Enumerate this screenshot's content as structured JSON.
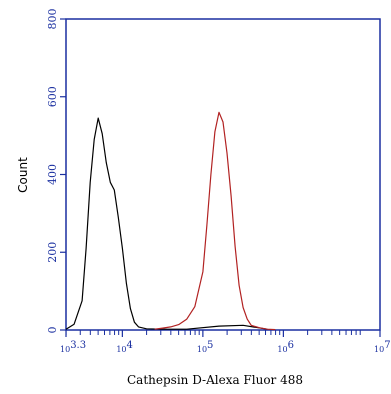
{
  "chart_data": {
    "type": "line",
    "xlabel": "Cathepsin D-Alexa Fluor 488",
    "ylabel": "Count",
    "x_scale": "log10",
    "xlim": [
      3.3,
      7.2
    ],
    "ylim": [
      0,
      800
    ],
    "y_ticks": [
      "0",
      "200",
      "400",
      "600",
      "800"
    ],
    "x_ticks": [
      {
        "exponent": 3.3,
        "label": "10",
        "sup": "3.3"
      },
      {
        "exponent": 4,
        "label": "10",
        "sup": "4"
      },
      {
        "exponent": 5,
        "label": "10",
        "sup": "5"
      },
      {
        "exponent": 6,
        "label": "10",
        "sup": "6"
      },
      {
        "exponent": 7.2,
        "label": "10",
        "sup": "7.2"
      }
    ],
    "grid": false,
    "series": [
      {
        "color": "#000000",
        "x": [
          3.3,
          3.4,
          3.5,
          3.55,
          3.6,
          3.65,
          3.7,
          3.75,
          3.8,
          3.85,
          3.9,
          3.95,
          4.0,
          4.05,
          4.1,
          4.15,
          4.2,
          4.3,
          4.5,
          4.8,
          5.2,
          5.5,
          5.8
        ],
        "y": [
          2,
          15,
          75,
          210,
          380,
          490,
          545,
          505,
          430,
          380,
          360,
          290,
          210,
          120,
          55,
          20,
          8,
          3,
          2,
          2,
          10,
          12,
          2
        ]
      },
      {
        "color": "#b22222",
        "x": [
          4.4,
          4.5,
          4.6,
          4.7,
          4.8,
          4.9,
          5.0,
          5.05,
          5.1,
          5.15,
          5.2,
          5.25,
          5.3,
          5.35,
          5.4,
          5.45,
          5.5,
          5.55,
          5.6,
          5.7,
          5.8,
          5.9
        ],
        "y": [
          2,
          5,
          8,
          14,
          28,
          60,
          150,
          270,
          400,
          510,
          560,
          535,
          455,
          345,
          215,
          115,
          58,
          28,
          12,
          6,
          2,
          1
        ]
      }
    ]
  }
}
